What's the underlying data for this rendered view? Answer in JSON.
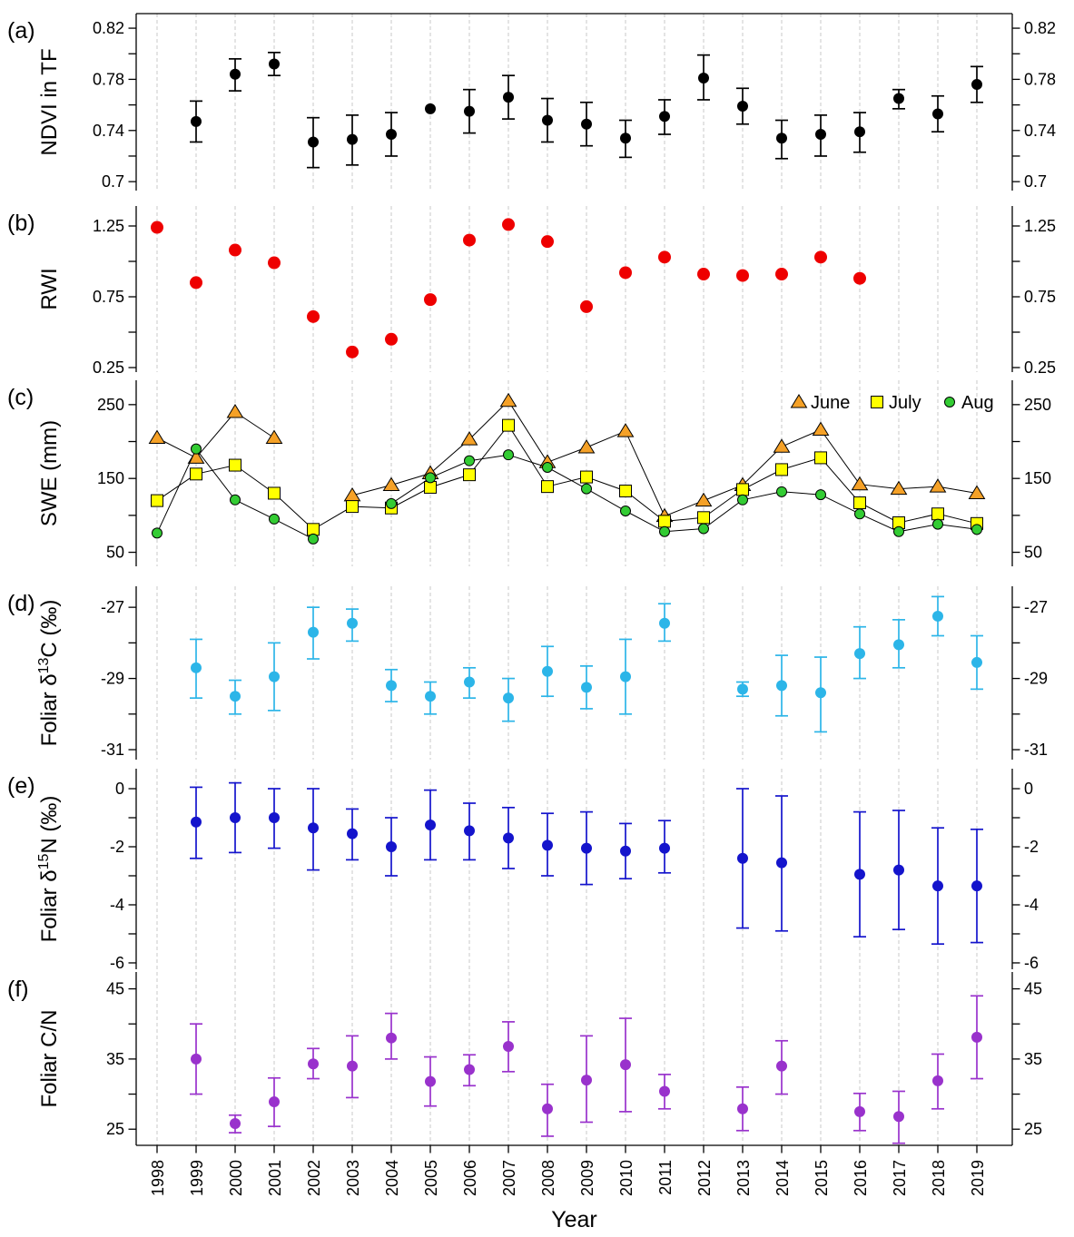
{
  "figure": {
    "xlabel": "Year",
    "x_tick_labels": [
      "1998",
      "1999",
      "2000",
      "2001",
      "2002",
      "2003",
      "2004",
      "2005",
      "2006",
      "2007",
      "2008",
      "2009",
      "2010",
      "2011",
      "2012",
      "2013",
      "2014",
      "2015",
      "2016",
      "2017",
      "2018",
      "2019"
    ]
  },
  "chart_data": [
    {
      "id": "a",
      "type": "scatter",
      "panel_letter": "(a)",
      "ylabel_parts": [
        {
          "t": "NDVI in TF"
        }
      ],
      "color": "#000000",
      "ylim": [
        0.693,
        0.8314
      ],
      "yticks": [
        0.7,
        0.74,
        0.78,
        0.82
      ],
      "ytick_labels": [
        "0.7",
        "0.74",
        "0.78",
        "0.82"
      ],
      "yticks_minor": [
        0.72,
        0.76,
        0.8
      ],
      "points": [
        [
          1999,
          0.747,
          0.731,
          0.763
        ],
        [
          2000,
          0.784,
          0.771,
          0.796
        ],
        [
          2001,
          0.792,
          0.783,
          0.801
        ],
        [
          2002,
          0.731,
          0.711,
          0.75
        ],
        [
          2003,
          0.733,
          0.713,
          0.752
        ],
        [
          2004,
          0.737,
          0.72,
          0.754
        ],
        [
          2005,
          0.757,
          null,
          null
        ],
        [
          2006,
          0.755,
          0.738,
          0.772
        ],
        [
          2007,
          0.766,
          0.749,
          0.783
        ],
        [
          2008,
          0.748,
          0.731,
          0.765
        ],
        [
          2009,
          0.745,
          0.728,
          0.762
        ],
        [
          2010,
          0.734,
          0.719,
          0.748
        ],
        [
          2011,
          0.751,
          0.737,
          0.764
        ],
        [
          2012,
          0.781,
          0.764,
          0.799
        ],
        [
          2013,
          0.759,
          0.745,
          0.773
        ],
        [
          2014,
          0.734,
          0.718,
          0.748
        ],
        [
          2015,
          0.737,
          0.72,
          0.752
        ],
        [
          2016,
          0.739,
          0.723,
          0.754
        ],
        [
          2017,
          0.765,
          0.757,
          0.772
        ],
        [
          2018,
          0.753,
          0.739,
          0.767
        ],
        [
          2019,
          0.776,
          0.762,
          0.79
        ]
      ]
    },
    {
      "id": "b",
      "type": "scatter",
      "panel_letter": "(b)",
      "ylabel_parts": [
        {
          "t": "RWI"
        }
      ],
      "color": "#ee0000",
      "ylim": [
        0.218,
        1.391
      ],
      "yticks": [
        0.25,
        0.75,
        1.25
      ],
      "ytick_labels": [
        "0.25",
        "0.75",
        "1.25"
      ],
      "yticks_minor": [
        0.5,
        1.0
      ],
      "points": [
        [
          1998,
          1.24,
          null,
          null
        ],
        [
          1999,
          0.85,
          null,
          null
        ],
        [
          2000,
          1.08,
          null,
          null
        ],
        [
          2001,
          0.99,
          null,
          null
        ],
        [
          2002,
          0.61,
          null,
          null
        ],
        [
          2003,
          0.36,
          null,
          null
        ],
        [
          2004,
          0.45,
          null,
          null
        ],
        [
          2005,
          0.73,
          null,
          null
        ],
        [
          2006,
          1.15,
          null,
          null
        ],
        [
          2007,
          1.26,
          null,
          null
        ],
        [
          2008,
          1.14,
          null,
          null
        ],
        [
          2009,
          0.68,
          null,
          null
        ],
        [
          2010,
          0.92,
          null,
          null
        ],
        [
          2011,
          1.03,
          null,
          null
        ],
        [
          2012,
          0.91,
          null,
          null
        ],
        [
          2013,
          0.9,
          null,
          null
        ],
        [
          2014,
          0.91,
          null,
          null
        ],
        [
          2015,
          1.03,
          null,
          null
        ],
        [
          2016,
          0.88,
          null,
          null
        ]
      ]
    },
    {
      "id": "c",
      "type": "line-scatter",
      "panel_letter": "(c)",
      "ylabel_parts": [
        {
          "t": "SWE (mm)"
        }
      ],
      "ylim": [
        31,
        283
      ],
      "yticks": [
        50,
        150,
        250
      ],
      "ytick_labels": [
        "50",
        "150",
        "250"
      ],
      "yticks_minor": [
        100,
        200
      ],
      "legend": {
        "items": [
          {
            "label": "June",
            "marker": "triangle",
            "fill": "#F5A127"
          },
          {
            "label": "July",
            "marker": "square",
            "fill": "#FFFF00"
          },
          {
            "label": "Aug",
            "marker": "circle",
            "fill": "#33CC33"
          }
        ]
      },
      "series": [
        {
          "name": "June",
          "marker": "triangle",
          "fill": "#F5A127",
          "points": [
            [
              1998,
              205
            ],
            [
              1999,
              178
            ],
            [
              2000,
              240
            ],
            [
              2001,
              205
            ],
            [
              2003,
              127
            ],
            [
              2004,
              141
            ],
            [
              2005,
              157
            ],
            [
              2006,
              203
            ],
            [
              2007,
              255
            ],
            [
              2008,
              172
            ],
            [
              2009,
              192
            ],
            [
              2010,
              214
            ],
            [
              2011,
              99
            ],
            [
              2012,
              120
            ],
            [
              2013,
              141
            ],
            [
              2014,
              193
            ],
            [
              2015,
              216
            ],
            [
              2016,
              142
            ],
            [
              2017,
              136
            ],
            [
              2018,
              139
            ],
            [
              2019,
              130
            ]
          ]
        },
        {
          "name": "July",
          "marker": "square",
          "fill": "#FFFF00",
          "points": [
            [
              1998,
              120
            ],
            [
              1999,
              156
            ],
            [
              2000,
              168
            ],
            [
              2001,
              130
            ],
            [
              2002,
              81
            ],
            [
              2003,
              112
            ],
            [
              2004,
              110
            ],
            [
              2005,
              138
            ],
            [
              2006,
              155
            ],
            [
              2007,
              222
            ],
            [
              2008,
              139
            ],
            [
              2009,
              152
            ],
            [
              2010,
              133
            ],
            [
              2011,
              92
            ],
            [
              2012,
              97
            ],
            [
              2013,
              135
            ],
            [
              2014,
              162
            ],
            [
              2015,
              178
            ],
            [
              2016,
              117
            ],
            [
              2017,
              90
            ],
            [
              2018,
              102
            ],
            [
              2019,
              89
            ]
          ]
        },
        {
          "name": "Aug",
          "marker": "circle",
          "fill": "#33CC33",
          "points": [
            [
              1998,
              76
            ],
            [
              1999,
              190
            ],
            [
              2000,
              121
            ],
            [
              2001,
              95
            ],
            [
              2002,
              68
            ],
            [
              2004,
              116
            ],
            [
              2005,
              151
            ],
            [
              2006,
              174
            ],
            [
              2007,
              182
            ],
            [
              2008,
              165
            ],
            [
              2009,
              136
            ],
            [
              2010,
              106
            ],
            [
              2011,
              78
            ],
            [
              2012,
              82
            ],
            [
              2013,
              121
            ],
            [
              2014,
              132
            ],
            [
              2015,
              128
            ],
            [
              2016,
              102
            ],
            [
              2017,
              78
            ],
            [
              2018,
              88
            ],
            [
              2019,
              81
            ]
          ]
        }
      ]
    },
    {
      "id": "d",
      "type": "scatter",
      "panel_letter": "(d)",
      "ylabel_parts": [
        {
          "t": "Foliar δ"
        },
        {
          "t": "13",
          "sup": true
        },
        {
          "t": "C (‰)"
        }
      ],
      "color": "#2CB5E8",
      "ylim": [
        -31.28,
        -26.41
      ],
      "yticks": [
        -31,
        -29,
        -27
      ],
      "ytick_labels": [
        "-31",
        "-29",
        "-27"
      ],
      "yticks_minor": [
        -30,
        -28
      ],
      "points": [
        [
          1999,
          -28.7,
          -27.9,
          -29.55
        ],
        [
          2000,
          -29.5,
          -29.05,
          -30.0
        ],
        [
          2001,
          -28.95,
          -28.0,
          -29.9
        ],
        [
          2002,
          -27.7,
          -27.0,
          -28.45
        ],
        [
          2003,
          -27.45,
          -27.05,
          -27.95
        ],
        [
          2004,
          -29.2,
          -28.75,
          -29.65
        ],
        [
          2005,
          -29.5,
          -29.1,
          -30.0
        ],
        [
          2006,
          -29.1,
          -28.7,
          -29.55
        ],
        [
          2007,
          -29.55,
          -29.0,
          -30.2
        ],
        [
          2008,
          -28.8,
          -28.1,
          -29.5
        ],
        [
          2009,
          -29.25,
          -28.65,
          -29.85
        ],
        [
          2010,
          -28.95,
          -27.9,
          -30.0
        ],
        [
          2011,
          -27.45,
          -26.9,
          -27.95
        ],
        [
          2013,
          -29.3,
          -29.1,
          -29.5
        ],
        [
          2014,
          -29.2,
          -28.35,
          -30.05
        ],
        [
          2015,
          -29.4,
          -28.4,
          -30.5
        ],
        [
          2016,
          -28.3,
          -27.55,
          -29.0
        ],
        [
          2017,
          -28.05,
          -27.35,
          -28.7
        ],
        [
          2018,
          -27.25,
          -26.7,
          -27.8
        ],
        [
          2019,
          -28.55,
          -27.8,
          -29.3
        ]
      ]
    },
    {
      "id": "e",
      "type": "scatter",
      "panel_letter": "(e)",
      "ylabel_parts": [
        {
          "t": "Foliar δ"
        },
        {
          "t": "15",
          "sup": true
        },
        {
          "t": "N (‰)"
        }
      ],
      "color": "#1414CC",
      "ylim": [
        -6.22,
        0.688
      ],
      "yticks": [
        -6,
        -4,
        -2,
        0
      ],
      "ytick_labels": [
        "-6",
        "-4",
        "-2",
        "0"
      ],
      "yticks_minor": [
        -5,
        -3,
        -1
      ],
      "points": [
        [
          1999,
          -1.15,
          0.05,
          -2.4
        ],
        [
          2000,
          -1.0,
          0.2,
          -2.2
        ],
        [
          2001,
          -1.0,
          0.0,
          -2.05
        ],
        [
          2002,
          -1.35,
          0.0,
          -2.8
        ],
        [
          2003,
          -1.55,
          -0.7,
          -2.45
        ],
        [
          2004,
          -2.0,
          -1.0,
          -3.0
        ],
        [
          2005,
          -1.25,
          -0.05,
          -2.45
        ],
        [
          2006,
          -1.45,
          -0.5,
          -2.45
        ],
        [
          2007,
          -1.7,
          -0.65,
          -2.75
        ],
        [
          2008,
          -1.95,
          -0.85,
          -3.0
        ],
        [
          2009,
          -2.05,
          -0.8,
          -3.3
        ],
        [
          2010,
          -2.15,
          -1.2,
          -3.1
        ],
        [
          2011,
          -2.05,
          -1.1,
          -2.9
        ],
        [
          2013,
          -2.4,
          0.0,
          -4.8
        ],
        [
          2014,
          -2.55,
          -0.25,
          -4.9
        ],
        [
          2016,
          -2.95,
          -0.8,
          -5.1
        ],
        [
          2017,
          -2.8,
          -0.75,
          -4.85
        ],
        [
          2018,
          -3.35,
          -1.35,
          -5.35
        ],
        [
          2019,
          -3.35,
          -1.4,
          -5.3
        ]
      ]
    },
    {
      "id": "f",
      "type": "scatter",
      "panel_letter": "(f)",
      "ylabel_parts": [
        {
          "t": "Foliar C/N"
        }
      ],
      "color": "#9932CC",
      "ylim": [
        22.7,
        47.4
      ],
      "yticks": [
        25,
        35,
        45
      ],
      "ytick_labels": [
        "25",
        "35",
        "45"
      ],
      "yticks_minor": [
        30,
        40
      ],
      "points": [
        [
          1999,
          35.0,
          30.0,
          40.0
        ],
        [
          2000,
          25.8,
          24.5,
          27.0
        ],
        [
          2001,
          28.9,
          25.4,
          32.3
        ],
        [
          2002,
          34.3,
          32.2,
          36.5
        ],
        [
          2003,
          34.0,
          29.5,
          38.3
        ],
        [
          2004,
          38.0,
          35.0,
          41.5
        ],
        [
          2005,
          31.8,
          28.3,
          35.3
        ],
        [
          2006,
          33.5,
          31.2,
          35.6
        ],
        [
          2007,
          36.8,
          33.2,
          40.3
        ],
        [
          2008,
          27.9,
          24.0,
          31.4
        ],
        [
          2009,
          32.0,
          26.0,
          38.3
        ],
        [
          2010,
          34.2,
          27.5,
          40.8
        ],
        [
          2011,
          30.4,
          27.9,
          32.8
        ],
        [
          2013,
          27.9,
          24.8,
          31.0
        ],
        [
          2014,
          34.0,
          30.0,
          37.6
        ],
        [
          2016,
          27.5,
          24.8,
          30.1
        ],
        [
          2017,
          26.8,
          23.0,
          30.4
        ],
        [
          2018,
          31.9,
          27.9,
          35.7
        ],
        [
          2019,
          38.1,
          32.2,
          44.0
        ]
      ]
    }
  ]
}
